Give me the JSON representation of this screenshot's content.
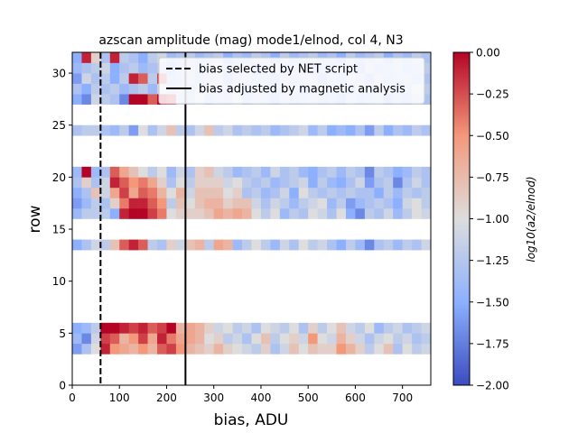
{
  "chart_data": {
    "type": "heatmap",
    "title": "azscan amplitude (mag) mode1/elnod, col 4, N3",
    "xlabel": "bias, ADU",
    "ylabel": "row",
    "xlim": [
      0,
      760
    ],
    "ylim": [
      0,
      32
    ],
    "x_bin_width": 20,
    "xticks": [
      0,
      100,
      200,
      300,
      400,
      500,
      600,
      700
    ],
    "xtick_labels": [
      "0",
      "100",
      "200",
      "300",
      "400",
      "500",
      "600",
      "700"
    ],
    "yticks": [
      0,
      5,
      10,
      15,
      20,
      25,
      30
    ],
    "ytick_labels": [
      "0",
      "5",
      "10",
      "15",
      "20",
      "25",
      "30"
    ],
    "colorbar": {
      "label": "log10(a2/elnod)",
      "colormap": "coolwarm",
      "min": -2.0,
      "max": 0.0,
      "ticks": [
        0.0,
        -0.25,
        -0.5,
        -0.75,
        -1.0,
        -1.25,
        -1.5,
        -1.75,
        -2.0
      ],
      "tick_labels": [
        "0.00",
        "−0.25",
        "−0.50",
        "−0.75",
        "−1.00",
        "−1.25",
        "−1.50",
        "−1.75",
        "−2.00"
      ]
    },
    "row_groups": [
      {
        "rows": [
          3,
          4,
          5
        ],
        "bias_start": 0,
        "values": [
          [
            -1.6,
            -1.3,
            -1.0,
            -0.1,
            -0.5,
            -0.6,
            -0.7,
            -0.5,
            -0.7,
            -0.3,
            -0.2,
            -0.5,
            -0.7,
            -0.8,
            -0.9,
            -0.7,
            -0.9,
            -1.0,
            -1.1,
            -1.2,
            -0.9,
            -1.3,
            -1.1,
            -0.8,
            -1.0,
            -0.8,
            -0.9,
            -0.9,
            -0.5,
            -0.7,
            -0.9,
            -1.2,
            -1.0,
            -0.8,
            -1.3,
            -1.0,
            -1.2,
            -1.1
          ],
          [
            -1.4,
            -1.7,
            -1.1,
            -0.2,
            -0.3,
            -0.7,
            -0.5,
            -0.2,
            -0.6,
            -0.1,
            -0.4,
            -0.6,
            -0.6,
            -0.7,
            -1.0,
            -0.9,
            -1.2,
            -1.1,
            -1.3,
            -1.0,
            -0.8,
            -1.2,
            -1.0,
            -0.9,
            -1.1,
            -0.5,
            -1.0,
            -1.1,
            -0.7,
            -0.9,
            -1.1,
            -1.3,
            -1.1,
            -1.0,
            -1.2,
            -1.1,
            -1.3,
            -1.2
          ],
          [
            -1.5,
            -1.4,
            -1.2,
            0.0,
            0.0,
            -0.1,
            -0.2,
            -0.1,
            -0.3,
            -0.2,
            0.0,
            -0.7,
            -0.6,
            -0.7,
            -0.9,
            -1.1,
            -1.0,
            -1.2,
            -1.1,
            -1.3,
            -1.0,
            -1.1,
            -1.2,
            -1.0,
            -1.3,
            -0.9,
            -1.2,
            -1.0,
            -0.8,
            -1.1,
            -1.2,
            -1.0,
            -1.4,
            -1.2,
            -1.1,
            -1.3,
            -1.2,
            -1.1
          ]
        ]
      },
      {
        "rows": [
          13
        ],
        "bias_start": 0,
        "values": [
          [
            -1.5,
            -1.3,
            -1.1,
            -1.2,
            -0.8,
            -0.3,
            -0.1,
            -0.3,
            -1.2,
            -1.3,
            -0.9,
            -1.1,
            -0.8,
            -0.7,
            -1.2,
            -0.6,
            -0.7,
            -1.4,
            -1.2,
            -1.0,
            -1.2,
            -1.4,
            -1.1,
            -1.3,
            -1.0,
            -1.2,
            -1.1,
            -1.3,
            -1.5,
            -1.2,
            -1.4,
            -1.7,
            -1.3,
            -1.2,
            -1.4,
            -1.2,
            -1.3,
            -1.1
          ]
        ]
      },
      {
        "rows": [
          16,
          17,
          18,
          19,
          20
        ],
        "bias_start": 0,
        "values": [
          [
            -1.4,
            -1.2,
            -1.2,
            -1.2,
            -1.5,
            -0.1,
            0.0,
            0.0,
            -0.2,
            -0.4,
            -1.0,
            -0.9,
            -0.9,
            -0.9,
            -0.8,
            -0.6,
            -0.7,
            -0.6,
            -0.7,
            -1.0,
            -1.2,
            -1.0,
            -1.4,
            -1.2,
            -1.3,
            -1.0,
            -1.1,
            -1.3,
            -1.0,
            -1.5,
            -1.7,
            -1.2,
            -1.3,
            -1.1,
            -1.4,
            -1.2,
            -1.0,
            -1.1
          ],
          [
            -1.6,
            -1.4,
            -1.2,
            -1.3,
            -0.9,
            -0.4,
            -0.1,
            -0.1,
            -0.3,
            -0.5,
            -1.2,
            -0.8,
            -1.0,
            -0.8,
            -0.7,
            -0.7,
            -0.9,
            -0.8,
            -0.8,
            -1.1,
            -1.3,
            -1.1,
            -1.2,
            -1.4,
            -1.2,
            -1.1,
            -1.0,
            -1.4,
            -1.2,
            -1.6,
            -1.4,
            -1.3,
            -1.2,
            -1.3,
            -1.5,
            -1.1,
            -1.0,
            -1.2
          ],
          [
            -1.5,
            -1.3,
            -0.8,
            -1.1,
            -0.6,
            -0.2,
            -0.6,
            -0.3,
            -0.4,
            -0.7,
            -1.0,
            -0.7,
            -1.1,
            -0.8,
            -0.8,
            -0.8,
            -1.0,
            -0.9,
            -1.3,
            -1.2,
            -1.4,
            -1.3,
            -1.1,
            -1.5,
            -1.0,
            -1.2,
            -1.3,
            -1.2,
            -1.3,
            -1.2,
            -1.3,
            -1.3,
            -1.5,
            -1.2,
            -1.4,
            -1.2,
            -1.3,
            -1.2
          ],
          [
            -1.3,
            -0.9,
            -1.3,
            -1.1,
            -0.1,
            -0.3,
            -0.5,
            -0.4,
            -0.6,
            -0.9,
            -1.3,
            -1.0,
            -1.2,
            -0.9,
            -0.9,
            -0.9,
            -1.1,
            -1.0,
            -1.2,
            -1.3,
            -1.2,
            -1.4,
            -1.3,
            -1.2,
            -1.1,
            -1.5,
            -1.2,
            -1.4,
            -1.5,
            -1.3,
            -1.1,
            -1.6,
            -1.3,
            -1.2,
            -1.7,
            -1.3,
            -1.1,
            -1.3
          ],
          [
            -1.4,
            0.0,
            -1.4,
            -1.3,
            -0.3,
            -0.6,
            -0.8,
            -1.0,
            -1.2,
            -1.0,
            -1.4,
            -1.1,
            -1.3,
            -0.9,
            -0.8,
            -1.1,
            -1.2,
            -1.4,
            -1.3,
            -1.2,
            -1.4,
            -1.1,
            -1.3,
            -1.2,
            -1.4,
            -1.5,
            -1.3,
            -1.2,
            -1.4,
            -1.2,
            -1.3,
            -1.7,
            -1.2,
            -1.3,
            -1.5,
            -1.4,
            -1.2,
            -1.3
          ]
        ]
      },
      {
        "rows": [
          24
        ],
        "bias_start": 0,
        "values": [
          [
            -1.3,
            -1.2,
            -1.2,
            -1.3,
            -1.4,
            -1.2,
            -1.6,
            -1.0,
            -1.3,
            -1.1,
            -0.8,
            -1.2,
            -1.3,
            -1.1,
            -0.8,
            -1.2,
            -1.1,
            -1.3,
            -1.2,
            -1.3,
            -1.2,
            -1.4,
            -1.3,
            -1.2,
            -1.1,
            -1.4,
            -1.2,
            -1.5,
            -1.4,
            -1.5,
            -1.3,
            -1.6,
            -1.2,
            -1.5,
            -1.3,
            -1.4,
            -1.2,
            -1.3
          ]
        ]
      },
      {
        "rows": [
          27,
          28,
          29,
          30,
          31
        ],
        "bias_start": 0,
        "values": [
          [
            -1.5,
            -1.7,
            -1.1,
            -1.2,
            -1.3,
            -1.7,
            0.0,
            0.0,
            -0.3,
            0.0,
            -0.1,
            -1.2,
            -1.3,
            -1.1,
            -1.4,
            -1.2,
            -1.3,
            -1.1,
            -1.4,
            -1.2,
            -1.3,
            -1.5,
            -1.2,
            -1.4,
            -1.3,
            -1.2,
            -1.4,
            -1.3,
            -1.5,
            -1.2,
            -1.4,
            -1.3,
            -1.2,
            -1.5,
            -1.3,
            -1.4,
            -1.2,
            -1.3
          ],
          [
            -1.3,
            -1.5,
            -1.2,
            -1.3,
            -1.2,
            -1.4,
            -1.3,
            -1.2,
            -1.4,
            -1.1,
            -1.3,
            -1.2,
            -1.4,
            -1.3,
            -1.2,
            -1.4,
            -1.3,
            -1.1,
            -1.5,
            -1.2,
            -1.3,
            -1.4,
            -1.2,
            -1.3,
            -1.5,
            -1.3,
            -1.2,
            -1.4,
            -1.3,
            -1.5,
            -1.2,
            -1.4,
            -1.3,
            -1.2,
            -1.4,
            -1.3,
            -1.1,
            -1.2
          ],
          [
            -1.6,
            -1.1,
            -1.3,
            -1.2,
            -1.5,
            -1.2,
            -0.1,
            -0.3,
            -1.2,
            -0.2,
            -1.4,
            -1.3,
            -1.2,
            -1.4,
            -1.3,
            -1.2,
            -1.5,
            -1.3,
            -1.2,
            -1.4,
            -1.3,
            -1.5,
            -1.2,
            -1.4,
            -1.3,
            -1.2,
            -1.5,
            -1.3,
            -1.4,
            -1.2,
            -1.3,
            -1.5,
            -1.2,
            -1.4,
            -1.3,
            -1.2,
            -1.4,
            -1.3
          ],
          [
            -1.4,
            -1.3,
            -1.2,
            -1.1,
            -1.5,
            -1.3,
            -1.2,
            -1.4,
            -1.3,
            -1.2,
            -1.5,
            -1.3,
            -1.2,
            -1.4,
            -1.3,
            -1.1,
            -1.4,
            -1.3,
            -1.2,
            -1.5,
            -1.3,
            -1.2,
            -1.4,
            -1.3,
            -1.2,
            -1.5,
            -1.3,
            -1.4,
            -1.2,
            -1.3,
            -1.5,
            -1.2,
            -1.4,
            -1.3,
            -1.2,
            -1.4,
            -1.3,
            -1.2
          ],
          [
            -1.5,
            -0.1,
            -0.9,
            -1.3,
            -0.1,
            -1.2,
            -1.3,
            -1.5,
            -1.2,
            -1.1,
            -1.4,
            -1.3,
            -1.2,
            -1.4,
            -1.3,
            -1.2,
            -1.5,
            -1.3,
            -1.4,
            -1.2,
            -1.3,
            -1.5,
            -1.2,
            -1.4,
            -1.3,
            -1.2,
            -1.4,
            -1.3,
            -1.5,
            -1.2,
            -1.4,
            -1.3,
            -1.2,
            -1.5,
            -1.3,
            -1.4,
            -1.2,
            -1.3
          ]
        ]
      }
    ],
    "overlays": [
      {
        "label": "bias selected by NET script",
        "x": 60,
        "style": "dashed",
        "color": "#000000"
      },
      {
        "label": "bias adjusted by magnetic analysis",
        "x": 240,
        "style": "solid",
        "color": "#000000"
      }
    ],
    "legend_position": "top-right",
    "grid": false
  }
}
